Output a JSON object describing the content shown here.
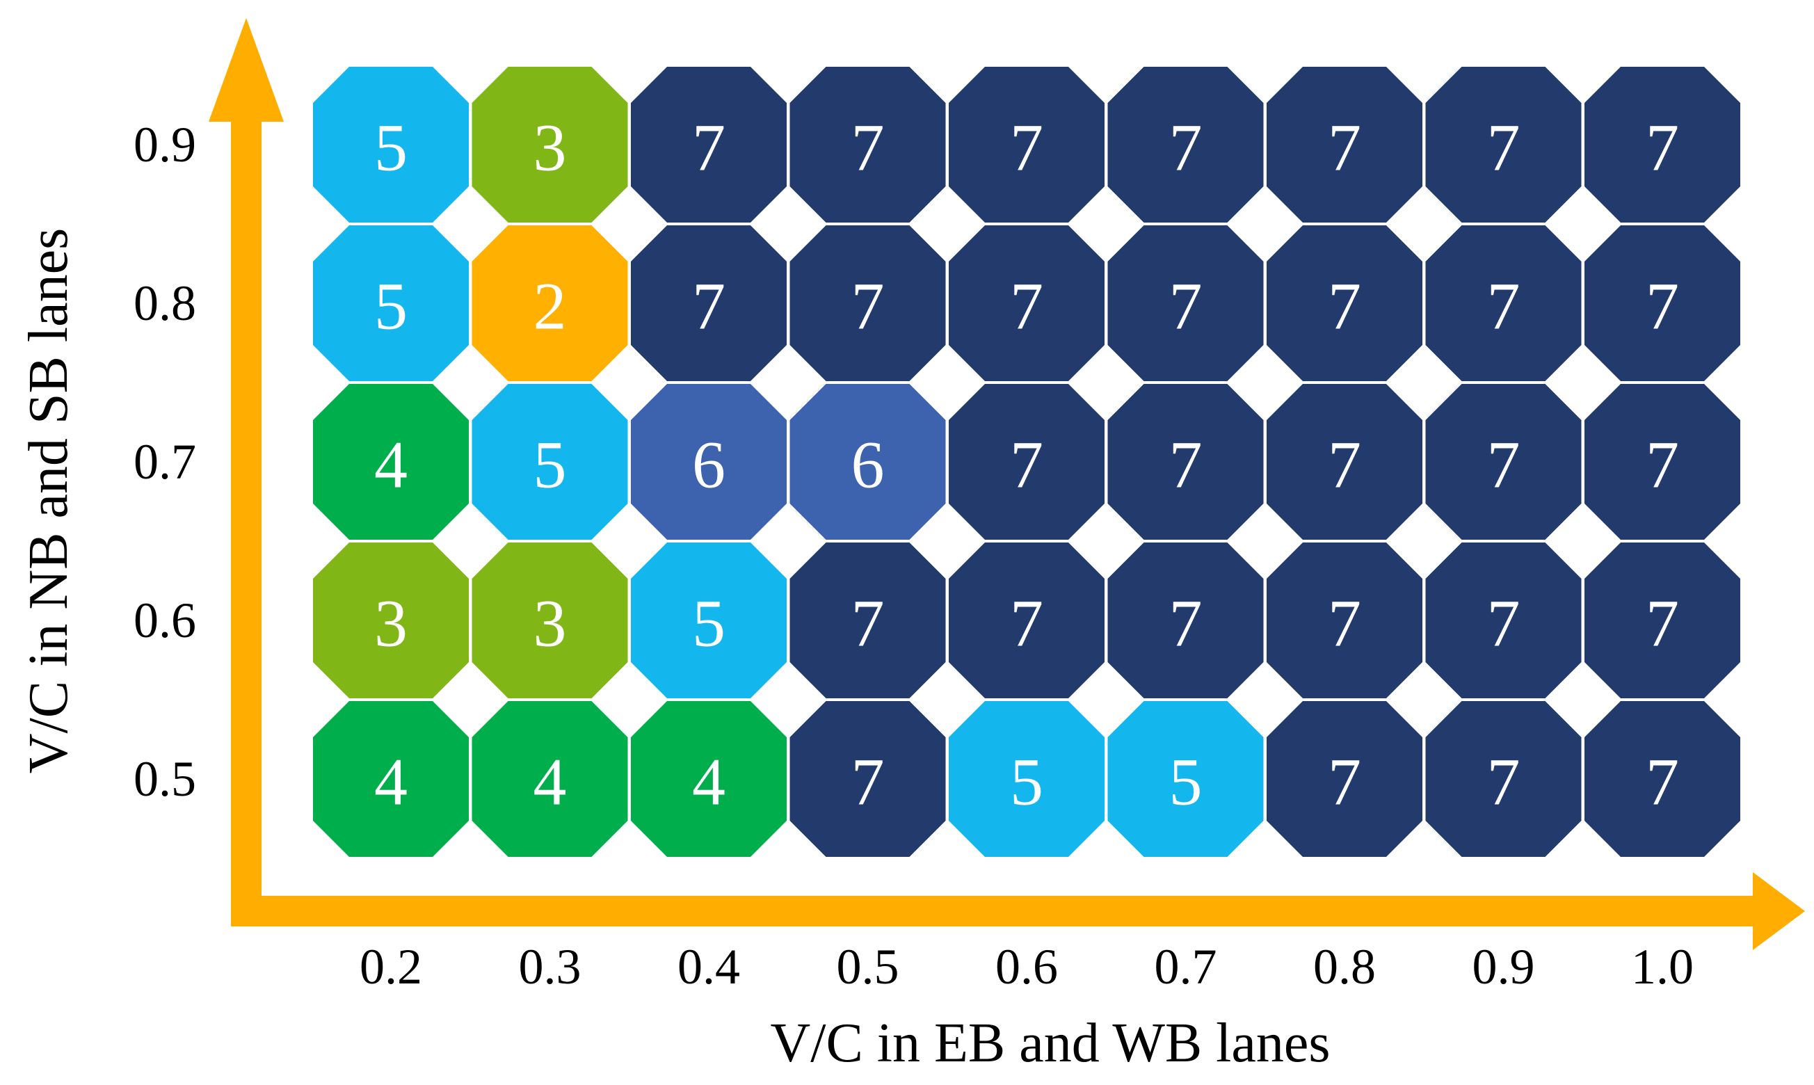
{
  "chart_data": {
    "type": "heatmap",
    "title": "",
    "xlabel": "V/C in EB and WB lanes",
    "ylabel": "V/C in NB and SB lanes",
    "x": [
      "0.2",
      "0.3",
      "0.4",
      "0.5",
      "0.6",
      "0.7",
      "0.8",
      "0.9",
      "1.0"
    ],
    "y": [
      "0.9",
      "0.8",
      "0.7",
      "0.6",
      "0.5"
    ],
    "values": [
      [
        5,
        3,
        7,
        7,
        7,
        7,
        7,
        7,
        7
      ],
      [
        5,
        2,
        7,
        7,
        7,
        7,
        7,
        7,
        7
      ],
      [
        4,
        5,
        6,
        6,
        7,
        7,
        7,
        7,
        7
      ],
      [
        3,
        3,
        5,
        7,
        7,
        7,
        7,
        7,
        7
      ],
      [
        4,
        4,
        4,
        7,
        5,
        5,
        7,
        7,
        7
      ]
    ],
    "grid": false,
    "legend": "none",
    "value_colors": {
      "2": "#FFB000",
      "3": "#80B616",
      "4": "#00AE4C",
      "5": "#13B7EE",
      "6": "#3D63AE",
      "7": "#233A6D"
    },
    "axis_color": "#FFAE00"
  }
}
